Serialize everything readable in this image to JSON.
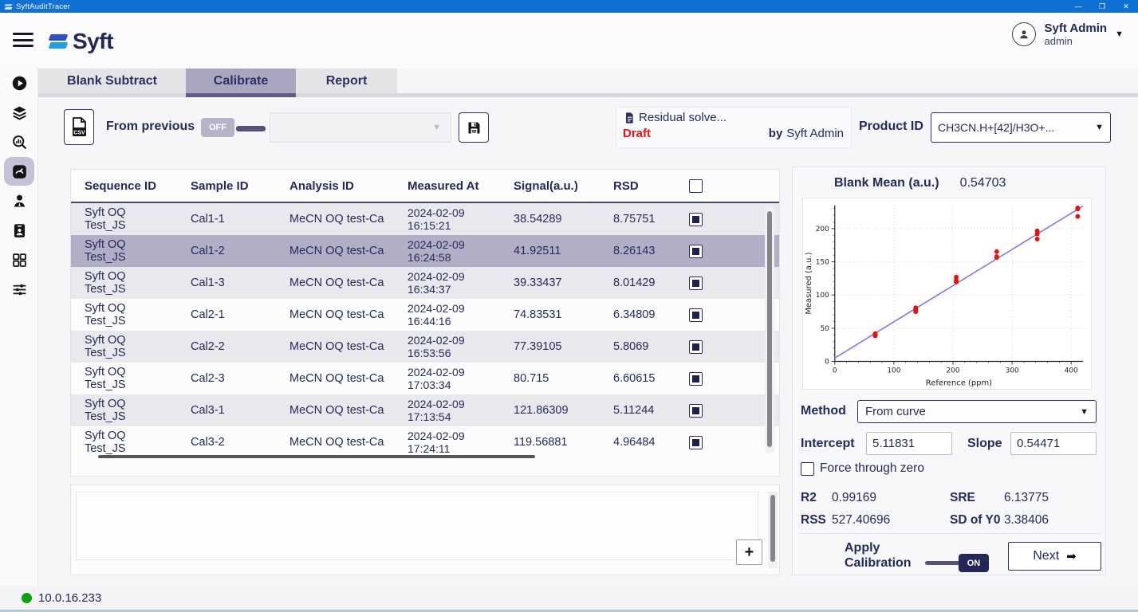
{
  "titlebar": {
    "title": "SyftAuditTracer"
  },
  "icons": {
    "caret_down": "▼",
    "minimize": "—",
    "maximize": "❐",
    "close": "✕",
    "plus": "+",
    "next_arrow": "➡"
  },
  "header": {
    "logo_text": "Syft",
    "user": {
      "name": "Syft Admin",
      "role": "admin"
    }
  },
  "sidebar": {
    "items": [
      "run",
      "layers",
      "search-analytics",
      "calibration-gauge",
      "users",
      "id-badge",
      "data-grid",
      "settings-sliders"
    ],
    "active_item": "calibration-gauge"
  },
  "tabs": [
    {
      "label": "Blank Subtract",
      "active": false
    },
    {
      "label": "Calibrate",
      "active": true
    },
    {
      "label": "Report",
      "active": false
    }
  ],
  "toolbar": {
    "from_previous_label": "From previous",
    "from_previous_state": "OFF",
    "previous_select_value": "",
    "document": {
      "title": "Residual solve...",
      "status": "Draft",
      "by_label": "by",
      "author": "Syft Admin"
    },
    "product_id_label": "Product ID",
    "product_id_value": "CH3CN.H+[42]/H3O+..."
  },
  "table": {
    "columns": [
      "Sequence ID",
      "Sample ID",
      "Analysis ID",
      "Measured At",
      "Signal(a.u.)",
      "RSD"
    ],
    "rows": [
      {
        "sequence_id": "Syft OQ Test_JS",
        "sample_id": "Cal1-1",
        "analysis_id": "MeCN OQ test-Ca",
        "measured_at": "2024-02-09 16:15:21",
        "signal": "38.54289",
        "rsd": "8.75751",
        "checked": true,
        "selected": false
      },
      {
        "sequence_id": "Syft OQ Test_JS",
        "sample_id": "Cal1-2",
        "analysis_id": "MeCN OQ test-Ca",
        "measured_at": "2024-02-09 16:24:58",
        "signal": "41.92511",
        "rsd": "8.26143",
        "checked": true,
        "selected": true
      },
      {
        "sequence_id": "Syft OQ Test_JS",
        "sample_id": "Cal1-3",
        "analysis_id": "MeCN OQ test-Ca",
        "measured_at": "2024-02-09 16:34:37",
        "signal": "39.33437",
        "rsd": "8.01429",
        "checked": true,
        "selected": false
      },
      {
        "sequence_id": "Syft OQ Test_JS",
        "sample_id": "Cal2-1",
        "analysis_id": "MeCN OQ test-Ca",
        "measured_at": "2024-02-09 16:44:16",
        "signal": "74.83531",
        "rsd": "6.34809",
        "checked": true,
        "selected": false
      },
      {
        "sequence_id": "Syft OQ Test_JS",
        "sample_id": "Cal2-2",
        "analysis_id": "MeCN OQ test-Ca",
        "measured_at": "2024-02-09 16:53:56",
        "signal": "77.39105",
        "rsd": "5.8069",
        "checked": true,
        "selected": false
      },
      {
        "sequence_id": "Syft OQ Test_JS",
        "sample_id": "Cal2-3",
        "analysis_id": "MeCN OQ test-Ca",
        "measured_at": "2024-02-09 17:03:34",
        "signal": "80.715",
        "rsd": "6.60615",
        "checked": true,
        "selected": false
      },
      {
        "sequence_id": "Syft OQ Test_JS",
        "sample_id": "Cal3-1",
        "analysis_id": "MeCN OQ test-Ca",
        "measured_at": "2024-02-09 17:13:54",
        "signal": "121.86309",
        "rsd": "5.11244",
        "checked": true,
        "selected": false
      },
      {
        "sequence_id": "Syft OQ Test_JS",
        "sample_id": "Cal3-2",
        "analysis_id": "MeCN OQ test-Ca",
        "measured_at": "2024-02-09 17:24:11",
        "signal": "119.56881",
        "rsd": "4.96484",
        "checked": true,
        "selected": false
      }
    ]
  },
  "panel": {
    "blank_mean_label": "Blank Mean (a.u.)",
    "blank_mean_value": "0.54703",
    "method_label": "Method",
    "method_value": "From curve",
    "intercept_label": "Intercept",
    "intercept_value": "5.11831",
    "slope_label": "Slope",
    "slope_value": "0.54471",
    "force_zero_label": "Force through zero",
    "force_zero_checked": false,
    "stats": {
      "r2_label": "R2",
      "r2": "0.99169",
      "sre_label": "SRE",
      "sre": "6.13775",
      "rss_label": "RSS",
      "rss": "527.40696",
      "sdy0_label": "SD of Y0",
      "sdy0": "3.38406"
    },
    "apply_label": "Apply Calibration",
    "apply_state": "ON",
    "next_label": "Next"
  },
  "statusbar": {
    "ip": "10.0.16.233"
  },
  "chart_data": {
    "type": "scatter",
    "title": "",
    "xlabel": "Reference (ppm)",
    "ylabel": "Measured (a.u.)",
    "xlim": [
      0,
      420
    ],
    "ylim": [
      0,
      235
    ],
    "xticks": [
      0,
      100,
      200,
      300,
      400
    ],
    "yticks": [
      0,
      50,
      100,
      150,
      200
    ],
    "grid": true,
    "legend": "none",
    "point_color": "#e8140c",
    "line_color": "#7b78ea",
    "fit_line": {
      "intercept": 5.11831,
      "slope": 0.54471
    },
    "points": [
      {
        "x": 68.5,
        "y": 38.54289
      },
      {
        "x": 68.5,
        "y": 41.92511
      },
      {
        "x": 68.5,
        "y": 39.33437
      },
      {
        "x": 137,
        "y": 74.83531
      },
      {
        "x": 137,
        "y": 77.39105
      },
      {
        "x": 137,
        "y": 80.715
      },
      {
        "x": 205.5,
        "y": 121.86309
      },
      {
        "x": 205.5,
        "y": 119.56881
      },
      {
        "x": 205.5,
        "y": 126.9
      },
      {
        "x": 274,
        "y": 156.3
      },
      {
        "x": 274,
        "y": 157.8
      },
      {
        "x": 274,
        "y": 165.2
      },
      {
        "x": 342.5,
        "y": 184.2
      },
      {
        "x": 342.5,
        "y": 191.8
      },
      {
        "x": 342.5,
        "y": 196.4
      },
      {
        "x": 411,
        "y": 218.2
      },
      {
        "x": 411,
        "y": 229.4
      },
      {
        "x": 411,
        "y": 231.0
      }
    ]
  }
}
